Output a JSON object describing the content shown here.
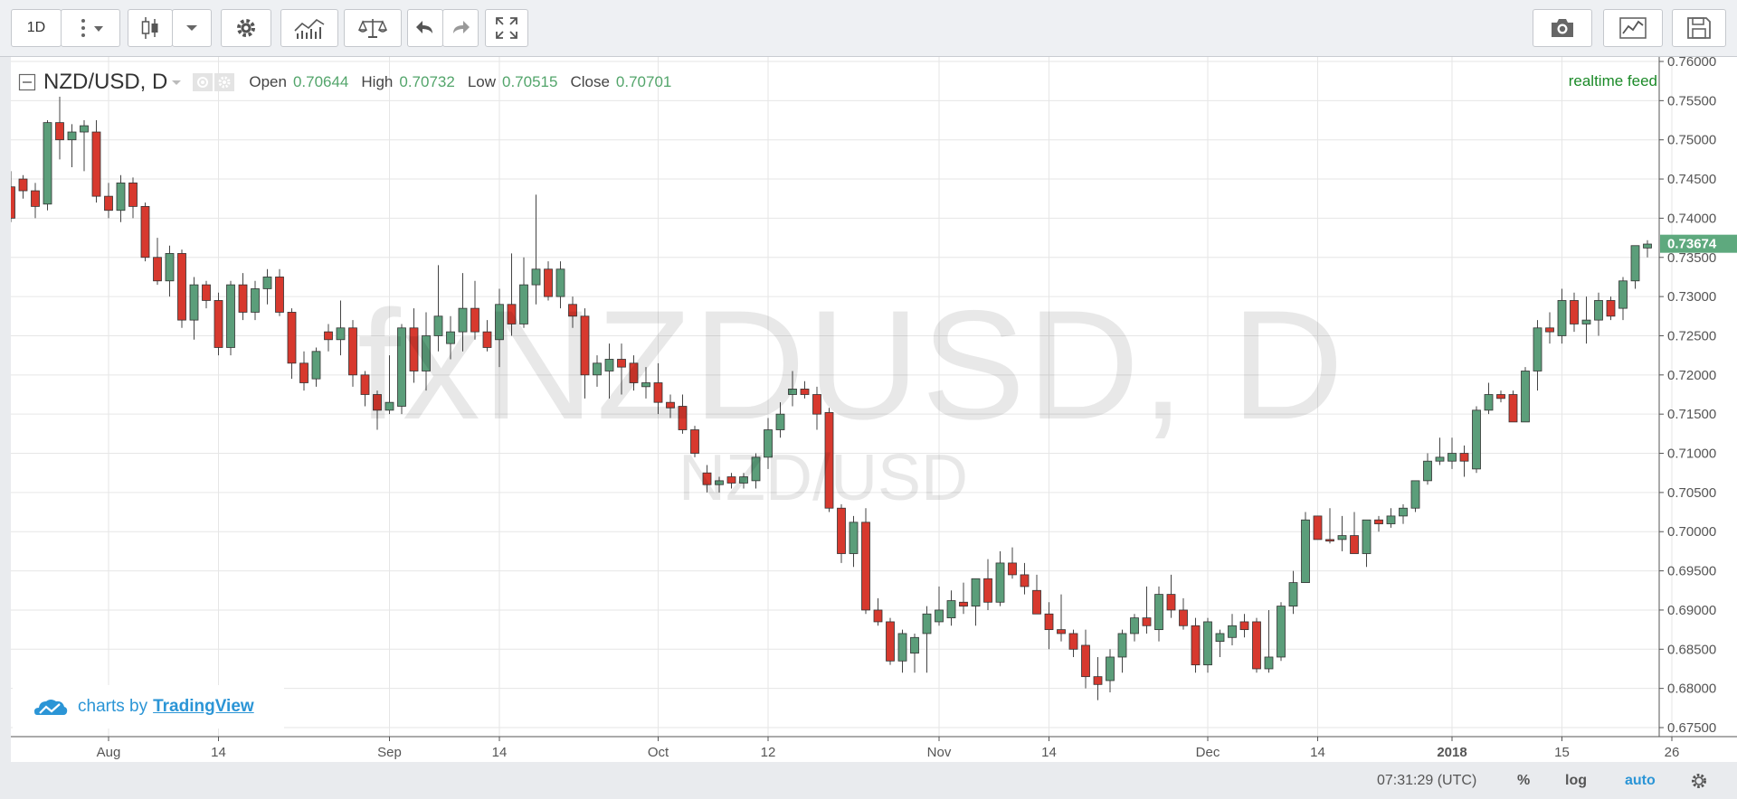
{
  "toolbar": {
    "interval": "1D"
  },
  "legend": {
    "symbol": "NZD/USD, D",
    "open_label": "Open",
    "open": "0.70644",
    "high_label": "High",
    "high": "0.70732",
    "low_label": "Low",
    "low": "0.70515",
    "close_label": "Close",
    "close": "0.70701"
  },
  "realtime": "realtime feed",
  "watermark": {
    "main": "fxNZDUSD, D",
    "sub": "NZD/USD"
  },
  "credit": {
    "prefix": "charts by",
    "brand": "TradingView"
  },
  "statusbar": {
    "time": "07:31:29 (UTC)",
    "percent": "%",
    "log": "log",
    "auto": "auto"
  },
  "colors": {
    "up": "#5b9e7a",
    "down": "#d7392e",
    "grid": "#e6e6e6",
    "last_price_bg": "#5ea97e"
  },
  "chart_data": {
    "type": "candlestick",
    "symbol": "NZD/USD",
    "interval": "D",
    "ylim": [
      0.675,
      0.76
    ],
    "y_ticks": [
      "0.76000",
      "0.75500",
      "0.75000",
      "0.74500",
      "0.74000",
      "0.73500",
      "0.73000",
      "0.72500",
      "0.72000",
      "0.71500",
      "0.71000",
      "0.70500",
      "0.70000",
      "0.69500",
      "0.69000",
      "0.68500",
      "0.68000",
      "0.67500"
    ],
    "x_ticks": [
      {
        "label": "Aug",
        "index": 8
      },
      {
        "label": "14",
        "index": 17
      },
      {
        "label": "Sep",
        "index": 31
      },
      {
        "label": "14",
        "index": 40
      },
      {
        "label": "Oct",
        "index": 53
      },
      {
        "label": "12",
        "index": 62
      },
      {
        "label": "Nov",
        "index": 76
      },
      {
        "label": "14",
        "index": 85
      },
      {
        "label": "Dec",
        "index": 98
      },
      {
        "label": "14",
        "index": 107
      },
      {
        "label": "2018",
        "index": 118
      },
      {
        "label": "15",
        "index": 127
      },
      {
        "label": "26",
        "index": 136
      }
    ],
    "last_price": "0.73674",
    "ohlc": [
      [
        0.744,
        0.746,
        0.7395,
        0.74
      ],
      [
        0.745,
        0.7455,
        0.7425,
        0.7435
      ],
      [
        0.7435,
        0.7445,
        0.74,
        0.7415
      ],
      [
        0.7418,
        0.7525,
        0.741,
        0.7522
      ],
      [
        0.7522,
        0.7555,
        0.7475,
        0.75
      ],
      [
        0.75,
        0.752,
        0.7465,
        0.751
      ],
      [
        0.751,
        0.7525,
        0.746,
        0.7518
      ],
      [
        0.751,
        0.7525,
        0.742,
        0.7428
      ],
      [
        0.7428,
        0.7445,
        0.74,
        0.741
      ],
      [
        0.741,
        0.7455,
        0.7395,
        0.7445
      ],
      [
        0.7445,
        0.7452,
        0.74,
        0.7415
      ],
      [
        0.7415,
        0.742,
        0.7345,
        0.735
      ],
      [
        0.735,
        0.7375,
        0.7315,
        0.732
      ],
      [
        0.732,
        0.7365,
        0.73,
        0.7355
      ],
      [
        0.7355,
        0.736,
        0.726,
        0.727
      ],
      [
        0.727,
        0.7325,
        0.7245,
        0.7315
      ],
      [
        0.7315,
        0.732,
        0.7285,
        0.7295
      ],
      [
        0.7295,
        0.7305,
        0.7225,
        0.7235
      ],
      [
        0.7235,
        0.732,
        0.7225,
        0.7315
      ],
      [
        0.7315,
        0.733,
        0.727,
        0.728
      ],
      [
        0.728,
        0.732,
        0.727,
        0.731
      ],
      [
        0.731,
        0.7335,
        0.729,
        0.7325
      ],
      [
        0.7325,
        0.7335,
        0.7275,
        0.728
      ],
      [
        0.728,
        0.7285,
        0.7195,
        0.7215
      ],
      [
        0.7215,
        0.723,
        0.718,
        0.719
      ],
      [
        0.7195,
        0.7235,
        0.7185,
        0.723
      ],
      [
        0.7255,
        0.7265,
        0.723,
        0.7245
      ],
      [
        0.7245,
        0.7295,
        0.7225,
        0.726
      ],
      [
        0.726,
        0.727,
        0.7185,
        0.72
      ],
      [
        0.72,
        0.7205,
        0.716,
        0.7175
      ],
      [
        0.7175,
        0.718,
        0.713,
        0.7155
      ],
      [
        0.7155,
        0.7225,
        0.715,
        0.7165
      ],
      [
        0.716,
        0.7265,
        0.715,
        0.726
      ],
      [
        0.726,
        0.7285,
        0.719,
        0.7205
      ],
      [
        0.7205,
        0.728,
        0.718,
        0.725
      ],
      [
        0.725,
        0.734,
        0.723,
        0.7275
      ],
      [
        0.724,
        0.7275,
        0.722,
        0.7255
      ],
      [
        0.7255,
        0.733,
        0.723,
        0.7285
      ],
      [
        0.7285,
        0.732,
        0.7245,
        0.7255
      ],
      [
        0.7255,
        0.727,
        0.723,
        0.7235
      ],
      [
        0.7245,
        0.731,
        0.721,
        0.729
      ],
      [
        0.729,
        0.7355,
        0.725,
        0.7265
      ],
      [
        0.7265,
        0.735,
        0.726,
        0.7315
      ],
      [
        0.7315,
        0.743,
        0.729,
        0.7335
      ],
      [
        0.7335,
        0.7345,
        0.7295,
        0.73
      ],
      [
        0.73,
        0.7345,
        0.7285,
        0.7335
      ],
      [
        0.729,
        0.73,
        0.726,
        0.7275
      ],
      [
        0.7275,
        0.7285,
        0.717,
        0.72
      ],
      [
        0.72,
        0.7225,
        0.7185,
        0.7215
      ],
      [
        0.7205,
        0.724,
        0.717,
        0.722
      ],
      [
        0.722,
        0.724,
        0.7175,
        0.721
      ],
      [
        0.7215,
        0.7225,
        0.718,
        0.719
      ],
      [
        0.7185,
        0.721,
        0.717,
        0.719
      ],
      [
        0.719,
        0.7215,
        0.715,
        0.7165
      ],
      [
        0.7165,
        0.7175,
        0.7145,
        0.7158
      ],
      [
        0.716,
        0.7175,
        0.7125,
        0.713
      ],
      [
        0.713,
        0.7135,
        0.7095,
        0.71
      ],
      [
        0.7075,
        0.7085,
        0.705,
        0.706
      ],
      [
        0.706,
        0.707,
        0.705,
        0.7065
      ],
      [
        0.707,
        0.7075,
        0.7055,
        0.7062
      ],
      [
        0.7062,
        0.7075,
        0.7055,
        0.707
      ],
      [
        0.7065,
        0.71,
        0.7055,
        0.7095
      ],
      [
        0.7095,
        0.7145,
        0.708,
        0.713
      ],
      [
        0.713,
        0.7165,
        0.712,
        0.715
      ],
      [
        0.7175,
        0.7205,
        0.716,
        0.7182
      ],
      [
        0.7182,
        0.7192,
        0.717,
        0.7175
      ],
      [
        0.7175,
        0.7185,
        0.713,
        0.715
      ],
      [
        0.7152,
        0.7158,
        0.7025,
        0.703
      ],
      [
        0.703,
        0.7035,
        0.696,
        0.6972
      ],
      [
        0.6972,
        0.702,
        0.6955,
        0.7012
      ],
      [
        0.7012,
        0.703,
        0.6895,
        0.69
      ],
      [
        0.69,
        0.6915,
        0.688,
        0.6885
      ],
      [
        0.6885,
        0.689,
        0.683,
        0.6835
      ],
      [
        0.6835,
        0.6875,
        0.682,
        0.687
      ],
      [
        0.6845,
        0.687,
        0.682,
        0.6865
      ],
      [
        0.687,
        0.6905,
        0.682,
        0.6895
      ],
      [
        0.6885,
        0.693,
        0.688,
        0.69
      ],
      [
        0.689,
        0.6925,
        0.688,
        0.6912
      ],
      [
        0.691,
        0.6935,
        0.6895,
        0.6905
      ],
      [
        0.6905,
        0.694,
        0.688,
        0.694
      ],
      [
        0.694,
        0.6965,
        0.69,
        0.691
      ],
      [
        0.691,
        0.6975,
        0.6905,
        0.696
      ],
      [
        0.696,
        0.698,
        0.694,
        0.6945
      ],
      [
        0.6945,
        0.696,
        0.692,
        0.693
      ],
      [
        0.6925,
        0.6945,
        0.6895,
        0.6895
      ],
      [
        0.6895,
        0.691,
        0.685,
        0.6875
      ],
      [
        0.6875,
        0.692,
        0.686,
        0.687
      ],
      [
        0.687,
        0.6875,
        0.684,
        0.685
      ],
      [
        0.6855,
        0.6875,
        0.68,
        0.6815
      ],
      [
        0.6815,
        0.684,
        0.6785,
        0.6805
      ],
      [
        0.681,
        0.685,
        0.6795,
        0.684
      ],
      [
        0.684,
        0.6875,
        0.682,
        0.687
      ],
      [
        0.687,
        0.6895,
        0.686,
        0.689
      ],
      [
        0.689,
        0.693,
        0.687,
        0.688
      ],
      [
        0.6875,
        0.693,
        0.686,
        0.692
      ],
      [
        0.692,
        0.6945,
        0.689,
        0.69
      ],
      [
        0.69,
        0.6915,
        0.6875,
        0.688
      ],
      [
        0.688,
        0.689,
        0.682,
        0.683
      ],
      [
        0.683,
        0.689,
        0.682,
        0.6885
      ],
      [
        0.686,
        0.6875,
        0.684,
        0.687
      ],
      [
        0.6865,
        0.6895,
        0.6855,
        0.688
      ],
      [
        0.6885,
        0.6895,
        0.6865,
        0.6875
      ],
      [
        0.6885,
        0.689,
        0.682,
        0.6825
      ],
      [
        0.6825,
        0.69,
        0.682,
        0.684
      ],
      [
        0.684,
        0.691,
        0.6835,
        0.6905
      ],
      [
        0.6905,
        0.695,
        0.6895,
        0.6935
      ],
      [
        0.6935,
        0.7025,
        0.6935,
        0.7015
      ],
      [
        0.702,
        0.702,
        0.699,
        0.699
      ],
      [
        0.699,
        0.703,
        0.6985,
        0.6988
      ],
      [
        0.699,
        0.702,
        0.6975,
        0.6995
      ],
      [
        0.6995,
        0.7025,
        0.6975,
        0.6972
      ],
      [
        0.6972,
        0.7015,
        0.6955,
        0.7015
      ],
      [
        0.7015,
        0.702,
        0.7,
        0.701
      ],
      [
        0.701,
        0.703,
        0.7005,
        0.702
      ],
      [
        0.702,
        0.7035,
        0.701,
        0.703
      ],
      [
        0.703,
        0.7065,
        0.7025,
        0.7065
      ],
      [
        0.7065,
        0.71,
        0.706,
        0.709
      ],
      [
        0.709,
        0.712,
        0.7085,
        0.7095
      ],
      [
        0.709,
        0.712,
        0.708,
        0.71
      ],
      [
        0.71,
        0.711,
        0.707,
        0.709
      ],
      [
        0.708,
        0.716,
        0.7075,
        0.7155
      ],
      [
        0.7155,
        0.719,
        0.715,
        0.7175
      ],
      [
        0.7175,
        0.718,
        0.7165,
        0.717
      ],
      [
        0.7175,
        0.718,
        0.7145,
        0.714
      ],
      [
        0.714,
        0.721,
        0.714,
        0.7205
      ],
      [
        0.7205,
        0.727,
        0.718,
        0.726
      ],
      [
        0.726,
        0.728,
        0.724,
        0.7255
      ],
      [
        0.725,
        0.731,
        0.724,
        0.7295
      ],
      [
        0.7295,
        0.7305,
        0.7255,
        0.7265
      ],
      [
        0.7265,
        0.73,
        0.724,
        0.727
      ],
      [
        0.727,
        0.7305,
        0.725,
        0.7295
      ],
      [
        0.7295,
        0.73,
        0.727,
        0.7275
      ],
      [
        0.7285,
        0.7325,
        0.727,
        0.732
      ],
      [
        0.732,
        0.7365,
        0.731,
        0.7365
      ],
      [
        0.7362,
        0.7372,
        0.735,
        0.7367
      ]
    ]
  }
}
